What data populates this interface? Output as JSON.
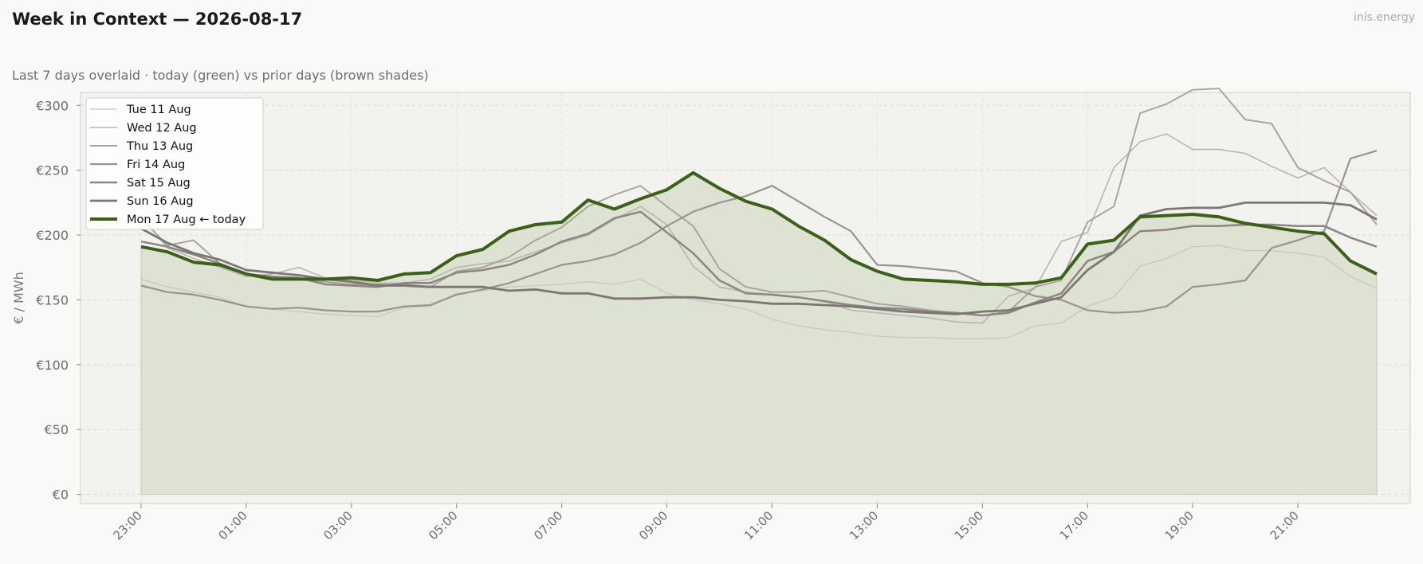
{
  "header": {
    "title": "Week in Context — 2026-08-17",
    "subtitle": "Last 7 days overlaid  ·  today (green) vs prior days (brown shades)",
    "brand": "inis.energy"
  },
  "chart_data": {
    "type": "line",
    "ylabel": "€ / MWh",
    "ylim": [
      -7,
      310
    ],
    "grid": true,
    "legend_position": "top-left",
    "y_ticks": [
      "€0",
      "€50",
      "€100",
      "€150",
      "€200",
      "€250",
      "€300"
    ],
    "y_tick_values": [
      0,
      50,
      100,
      150,
      200,
      250,
      300
    ],
    "x_tick_labels": [
      "23:00",
      "01:00",
      "03:00",
      "05:00",
      "07:00",
      "09:00",
      "11:00",
      "13:00",
      "15:00",
      "17:00",
      "19:00",
      "21:00"
    ],
    "x_tick_hours": [
      0,
      2,
      4,
      6,
      8,
      10,
      12,
      14,
      16,
      18,
      20,
      22
    ],
    "x_hours": [
      0,
      0.5,
      1,
      1.5,
      2,
      2.5,
      3,
      3.5,
      4,
      4.5,
      5,
      5.5,
      6,
      6.5,
      7,
      7.5,
      8,
      8.5,
      9,
      9.5,
      10,
      10.5,
      11,
      11.5,
      12,
      12.5,
      13,
      13.5,
      14,
      14.5,
      15,
      15.5,
      16,
      16.5,
      17,
      17.5,
      18,
      18.5,
      19,
      19.5,
      20,
      20.5,
      21,
      21.5,
      22,
      22.5,
      23,
      23.5
    ],
    "series": [
      {
        "name": "Tue 11 Aug",
        "color": "#c9c6c2",
        "width": 1.3,
        "values": [
          166,
          160,
          156,
          152,
          145,
          143,
          141,
          139,
          138,
          137,
          144,
          145,
          155,
          157,
          160,
          161,
          162,
          164,
          162,
          166,
          155,
          150,
          147,
          143,
          135,
          130,
          127,
          125,
          122,
          121,
          121,
          120,
          120,
          121,
          130,
          132,
          145,
          152,
          176,
          182,
          191,
          192,
          188,
          188,
          186,
          183,
          168,
          159
        ]
      },
      {
        "name": "Wed 12 Aug",
        "color": "#b9b5b1",
        "width": 1.6,
        "values": [
          215,
          190,
          182,
          175,
          168,
          170,
          175,
          167,
          165,
          163,
          163,
          166,
          175,
          178,
          180,
          187,
          194,
          200,
          212,
          222,
          208,
          176,
          160,
          156,
          154,
          152,
          149,
          142,
          140,
          138,
          136,
          133,
          132,
          153,
          159,
          195,
          202,
          252,
          272,
          278,
          266,
          266,
          263,
          253,
          244,
          252,
          233,
          215
        ]
      },
      {
        "name": "Thu 13 Aug",
        "color": "#a8a29f",
        "width": 1.9,
        "values": [
          213,
          192,
          196,
          178,
          170,
          168,
          166,
          164,
          162,
          162,
          162,
          160,
          172,
          175,
          183,
          196,
          206,
          222,
          231,
          238,
          222,
          207,
          174,
          160,
          156,
          156,
          157,
          152,
          147,
          145,
          142,
          140,
          138,
          141,
          160,
          165,
          210,
          222,
          294,
          301,
          312,
          313,
          289,
          286,
          252,
          242,
          233,
          208
        ]
      },
      {
        "name": "Fri 14 Aug",
        "color": "#9a9390",
        "width": 2.2,
        "values": [
          161,
          156,
          154,
          150,
          145,
          143,
          144,
          142,
          141,
          141,
          145,
          146,
          154,
          158,
          163,
          170,
          177,
          180,
          185,
          194,
          207,
          218,
          225,
          230,
          238,
          226,
          214,
          203,
          177,
          176,
          174,
          172,
          163,
          160,
          153,
          150,
          142,
          140,
          141,
          145,
          160,
          162,
          165,
          190,
          196,
          203,
          259,
          265
        ]
      },
      {
        "name": "Sat 15 Aug",
        "color": "#8c8582",
        "width": 2.5,
        "values": [
          195,
          191,
          185,
          178,
          170,
          168,
          167,
          162,
          161,
          160,
          163,
          163,
          171,
          173,
          177,
          185,
          195,
          201,
          213,
          218,
          202,
          186,
          165,
          155,
          154,
          152,
          149,
          146,
          144,
          143,
          141,
          140,
          138,
          140,
          148,
          155,
          180,
          187,
          203,
          204,
          207,
          207,
          208,
          208,
          207,
          207,
          198,
          191
        ]
      },
      {
        "name": "Sun 16 Aug",
        "color": "#7d7673",
        "width": 2.8,
        "values": [
          205,
          194,
          186,
          181,
          173,
          171,
          169,
          166,
          164,
          161,
          161,
          160,
          160,
          160,
          157,
          158,
          155,
          155,
          151,
          151,
          152,
          152,
          150,
          149,
          147,
          147,
          146,
          145,
          143,
          141,
          140,
          139,
          141,
          142,
          147,
          152,
          173,
          187,
          215,
          220,
          221,
          221,
          225,
          225,
          225,
          225,
          223,
          212
        ]
      },
      {
        "name": "Mon 17 Aug  ← today",
        "color": "#3a6117",
        "width": 4,
        "values": [
          191,
          187,
          179,
          177,
          170,
          166,
          166,
          166,
          167,
          165,
          170,
          171,
          184,
          189,
          203,
          208,
          210,
          227,
          220,
          228,
          235,
          248,
          236,
          226,
          220,
          207,
          196,
          181,
          172,
          166,
          165,
          164,
          162,
          162,
          163,
          167,
          193,
          196,
          214,
          215,
          216,
          214,
          209,
          206,
          203,
          201,
          180,
          170
        ]
      }
    ]
  }
}
